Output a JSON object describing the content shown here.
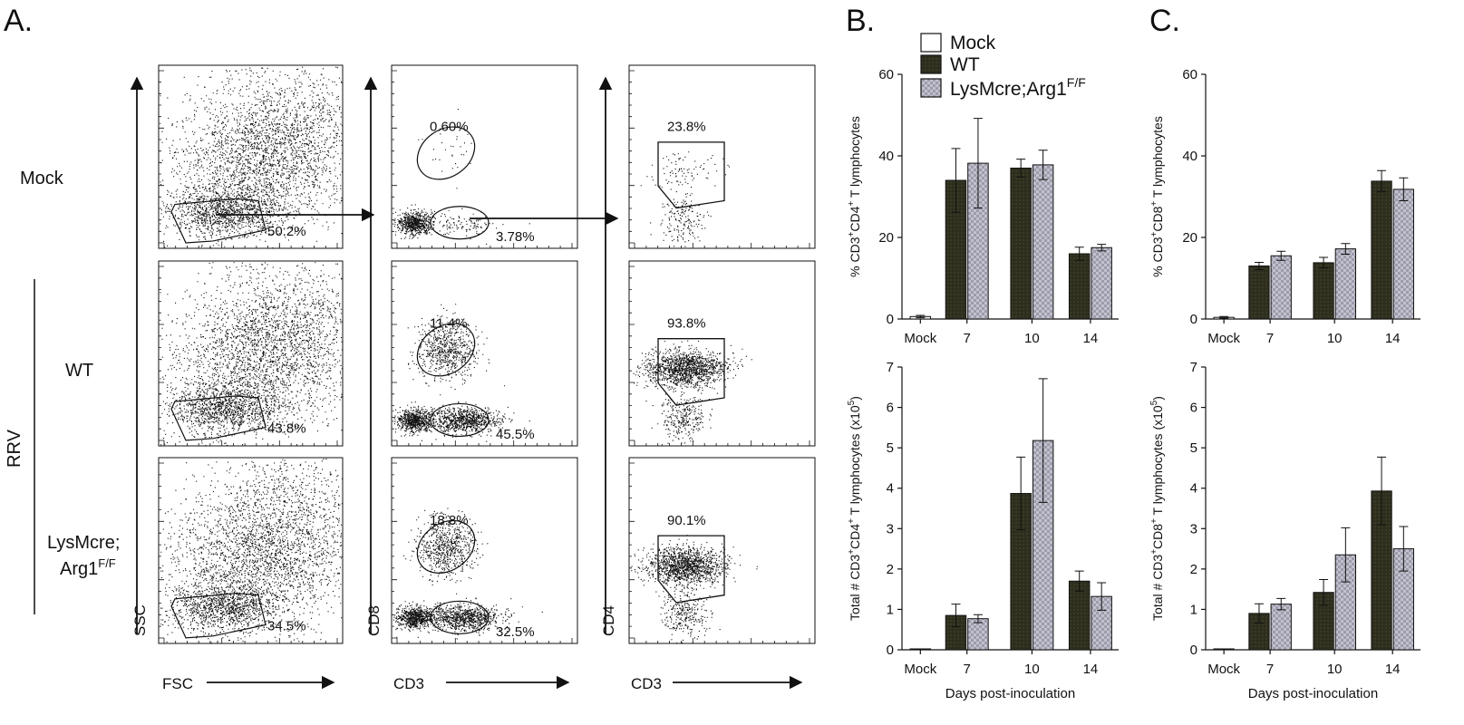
{
  "panels": {
    "a": "A.",
    "b": "B.",
    "c": "C."
  },
  "row_labels": {
    "mock": "Mock",
    "rrv": "RRV",
    "wt": "WT",
    "lys_line1": "LysMcre;",
    "lys_line2_base": "Arg1",
    "lys_line2_sup": "F/F"
  },
  "flow_axes": {
    "col1_y": "SSC",
    "col1_x": "FSC",
    "col2_y": "CD8",
    "col2_x": "CD3",
    "col3_y": "CD4",
    "col3_x": "CD3"
  },
  "flow_gates": {
    "mock": {
      "lymph": "50.2%",
      "cd8": "0.60%",
      "cd3": "3.78%",
      "cd4": "23.8%"
    },
    "wt": {
      "lymph": "43.8%",
      "cd8": "11.4%",
      "cd3": "45.5%",
      "cd4": "93.8%"
    },
    "lysmcre": {
      "lymph": "34.5%",
      "cd8": "18.8%",
      "cd3": "32.5%",
      "cd4": "90.1%"
    }
  },
  "legend": {
    "mock": "Mock",
    "wt": "WT",
    "lys_base": "LysMcre;Arg1",
    "lys_sup": "F/F"
  },
  "colors": {
    "mock": "#ffffff",
    "wt": "#2e2e1e",
    "lys": "#b9b9c6",
    "lys_check": "#9a9aaa",
    "ink": "#111111"
  },
  "x_axis_title": "Days post-inoculation",
  "chart_data": [
    {
      "id": "b-top",
      "type": "bar",
      "categories": [
        "Mock",
        "7",
        "10",
        "14"
      ],
      "ylim": [
        0,
        60
      ],
      "yticks": [
        0,
        20,
        40,
        60
      ],
      "ylabel_parts": [
        "% CD3",
        "+",
        "CD4",
        "+",
        " T lymphocytes"
      ],
      "series": [
        {
          "name": "Mock",
          "values": [
            0.6,
            null,
            null,
            null
          ],
          "errors": [
            0.3,
            null,
            null,
            null
          ]
        },
        {
          "name": "WT",
          "values": [
            null,
            34,
            37,
            16
          ],
          "errors": [
            null,
            7.8,
            2.2,
            1.6
          ]
        },
        {
          "name": "LysMcre;Arg1F/F",
          "values": [
            null,
            38.2,
            37.8,
            17.5
          ],
          "errors": [
            null,
            11,
            3.6,
            0.8
          ]
        }
      ]
    },
    {
      "id": "b-bottom",
      "type": "bar",
      "categories": [
        "Mock",
        "7",
        "10",
        "14"
      ],
      "xlabel": "Days post-inoculation",
      "ylim": [
        0,
        7
      ],
      "yticks": [
        0,
        1,
        2,
        3,
        4,
        5,
        6,
        7
      ],
      "ylabel_parts": [
        "Total # CD3",
        "+",
        "CD4",
        "+",
        " T lymphocytes (x10",
        "5",
        ")"
      ],
      "series": [
        {
          "name": "Mock",
          "values": [
            0.01,
            null,
            null,
            null
          ],
          "errors": [
            0,
            null,
            null,
            null
          ]
        },
        {
          "name": "WT",
          "values": [
            null,
            0.85,
            3.87,
            1.7
          ],
          "errors": [
            null,
            0.28,
            0.9,
            0.25
          ]
        },
        {
          "name": "LysMcre;Arg1F/F",
          "values": [
            null,
            0.77,
            5.18,
            1.32
          ],
          "errors": [
            null,
            0.1,
            1.53,
            0.34
          ]
        }
      ]
    },
    {
      "id": "c-top",
      "type": "bar",
      "categories": [
        "Mock",
        "7",
        "10",
        "14"
      ],
      "ylim": [
        0,
        60
      ],
      "yticks": [
        0,
        20,
        40,
        60
      ],
      "ylabel_parts": [
        "% CD3",
        "+",
        "CD8",
        "+",
        " T lymphocytes"
      ],
      "series": [
        {
          "name": "Mock",
          "values": [
            0.4,
            null,
            null,
            null
          ],
          "errors": [
            0.2,
            null,
            null,
            null
          ]
        },
        {
          "name": "WT",
          "values": [
            null,
            13,
            13.8,
            33.8
          ],
          "errors": [
            null,
            0.9,
            1.3,
            2.6
          ]
        },
        {
          "name": "LysMcre;Arg1F/F",
          "values": [
            null,
            15.5,
            17.2,
            31.8
          ],
          "errors": [
            null,
            1.1,
            1.3,
            2.8
          ]
        }
      ]
    },
    {
      "id": "c-bottom",
      "type": "bar",
      "categories": [
        "Mock",
        "7",
        "10",
        "14"
      ],
      "xlabel": "Days post-inoculation",
      "ylim": [
        0,
        7
      ],
      "yticks": [
        0,
        1,
        2,
        3,
        4,
        5,
        6,
        7
      ],
      "ylabel_parts": [
        "Total # CD3",
        "+",
        "CD8",
        "+",
        " T lymphocytes (x10",
        "5",
        ")"
      ],
      "series": [
        {
          "name": "Mock",
          "values": [
            0.01,
            null,
            null,
            null
          ],
          "errors": [
            0,
            null,
            null,
            null
          ]
        },
        {
          "name": "WT",
          "values": [
            null,
            0.9,
            1.42,
            3.93
          ],
          "errors": [
            null,
            0.24,
            0.32,
            0.84
          ]
        },
        {
          "name": "LysMcre;Arg1F/F",
          "values": [
            null,
            1.13,
            2.35,
            2.5
          ],
          "errors": [
            null,
            0.14,
            0.67,
            0.55
          ]
        }
      ]
    }
  ]
}
